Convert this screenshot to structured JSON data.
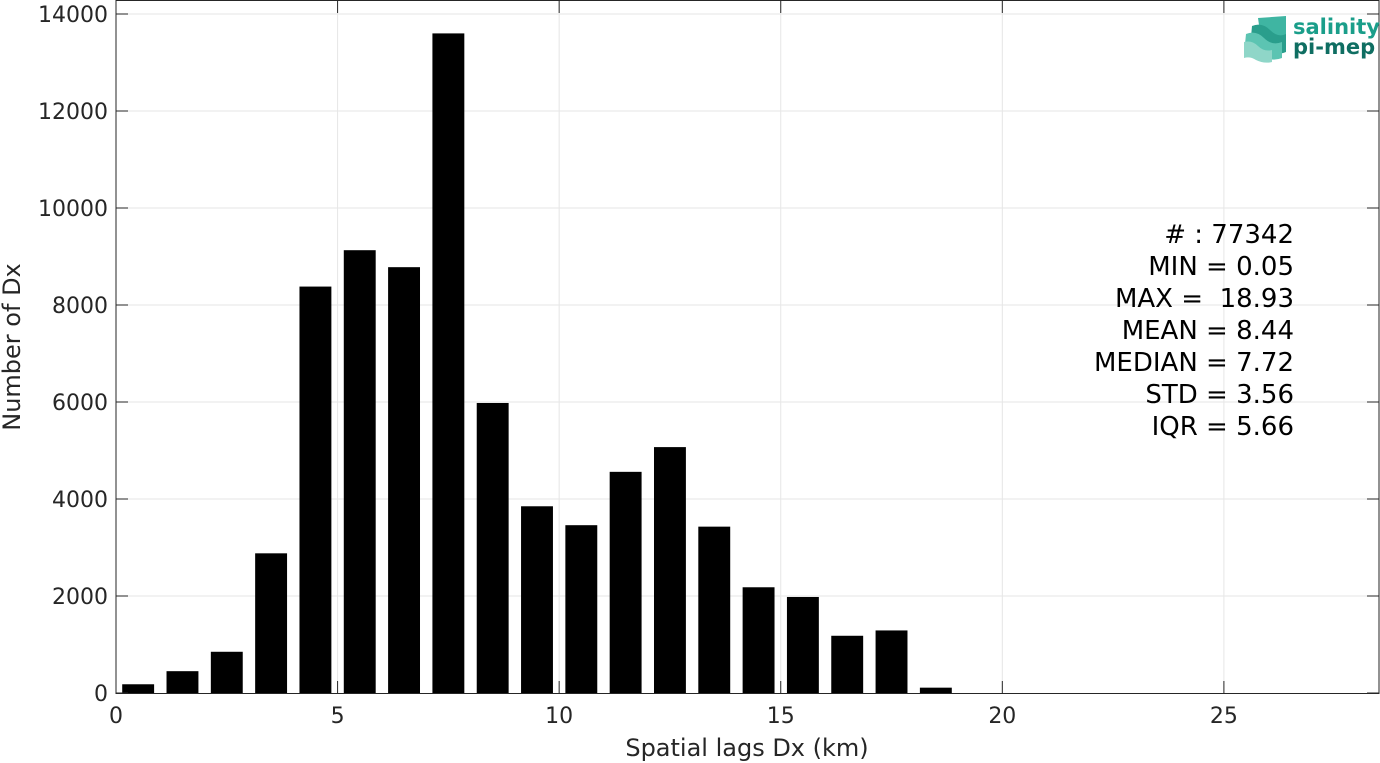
{
  "chart_data": {
    "type": "bar",
    "title": "",
    "xlabel": "Spatial lags Dx (km)",
    "ylabel": "Number of Dx",
    "xlim": [
      0,
      28.5
    ],
    "ylim": [
      0,
      14000
    ],
    "grid": true,
    "x_ticks": [
      0,
      5,
      10,
      15,
      20,
      25
    ],
    "y_ticks": [
      0,
      2000,
      4000,
      6000,
      8000,
      10000,
      12000,
      14000
    ],
    "bin_width": 1,
    "bar_fraction": 0.72,
    "bar_color": "#000000",
    "x": [
      0.5,
      1.5,
      2.5,
      3.5,
      4.5,
      5.5,
      6.5,
      7.5,
      8.5,
      9.5,
      10.5,
      11.5,
      12.5,
      13.5,
      14.5,
      15.5,
      16.5,
      17.5,
      18.5,
      19.5,
      20.5,
      21.5,
      22.5,
      23.5,
      24.5,
      25.5,
      26.5,
      27.5
    ],
    "values": [
      180,
      450,
      850,
      2880,
      8380,
      9130,
      8780,
      13600,
      5980,
      3850,
      3460,
      4560,
      5070,
      3430,
      2180,
      1980,
      1180,
      1290,
      110,
      0,
      0,
      0,
      0,
      0,
      0,
      0,
      0,
      0
    ]
  },
  "stats": {
    "count": "# : 77342",
    "min": "MIN = 0.05",
    "max": "MAX =  18.93",
    "mean": "MEAN = 8.44",
    "median": "MEDIAN = 7.72",
    "std": "STD = 3.56",
    "iqr": "IQR = 5.66"
  },
  "logo": {
    "line1": "salinity",
    "line2": "pi-mep",
    "color": "#1a9e8a"
  }
}
